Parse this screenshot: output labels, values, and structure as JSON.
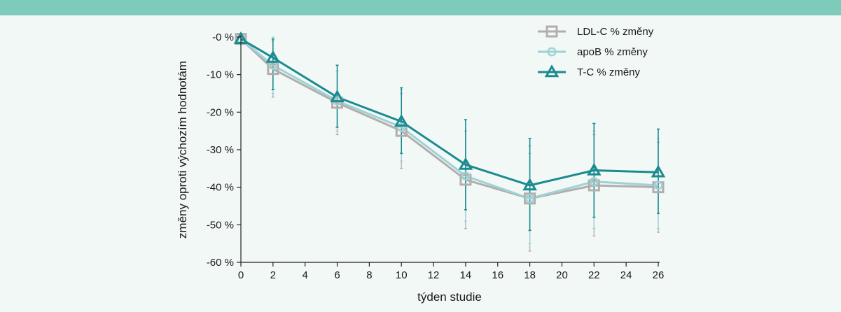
{
  "chart_data": {
    "type": "line",
    "xlabel": "týden studie",
    "ylabel": "změny oproti výchozím hodnotám",
    "xlim": [
      0,
      26
    ],
    "ylim": [
      -60,
      0
    ],
    "x_ticks": [
      "0",
      "2",
      "4",
      "6",
      "8",
      "10",
      "12",
      "14",
      "16",
      "18",
      "20",
      "22",
      "24",
      "26"
    ],
    "y_ticks": [
      {
        "value": 0,
        "label": "-0 %"
      },
      {
        "value": -10,
        "label": "-10 %"
      },
      {
        "value": -20,
        "label": "-20 %"
      },
      {
        "value": -30,
        "label": "-30 %"
      },
      {
        "value": -40,
        "label": "-40 %"
      },
      {
        "value": -50,
        "label": "-50 %"
      },
      {
        "value": -60,
        "label": "-60 %"
      }
    ],
    "x": [
      0,
      2,
      6,
      10,
      14,
      18,
      22,
      26
    ],
    "grid": false,
    "legend_position": "top-right",
    "series": [
      {
        "name": "LDL-C % změny",
        "marker": "square",
        "color": "#b3adad",
        "values": [
          -0.5,
          -8.5,
          -17.5,
          -25,
          -38,
          -43,
          -39.5,
          -40
        ],
        "err_low": [
          -0.5,
          -16,
          -26,
          -35,
          -51,
          -57,
          -53,
          -52
        ],
        "err_high": [
          -0.5,
          -1,
          -9,
          -15,
          -25,
          -29,
          -26,
          -28
        ]
      },
      {
        "name": "apoB % změny",
        "marker": "circle",
        "color": "#9fd2d6",
        "values": [
          -0.5,
          -7.5,
          -17,
          -24,
          -37,
          -43,
          -38.5,
          -39.5
        ],
        "err_low": [
          -0.5,
          -15,
          -25,
          -33,
          -49,
          -55,
          -51,
          -51
        ],
        "err_high": [
          -0.5,
          0,
          -9,
          -14,
          -25,
          -31,
          -25,
          -27
        ]
      },
      {
        "name": "T-C % změny",
        "marker": "triangle",
        "color": "#1a8b8f",
        "values": [
          -0.5,
          -5.5,
          -16,
          -22.5,
          -34,
          -39.5,
          -35.5,
          -36
        ],
        "err_low": [
          -0.5,
          -14,
          -24,
          -31,
          -46,
          -51.5,
          -48,
          -47
        ],
        "err_high": [
          -0.5,
          -0.5,
          -7.5,
          -13.5,
          -22,
          -27,
          -23,
          -24.5
        ]
      }
    ]
  }
}
